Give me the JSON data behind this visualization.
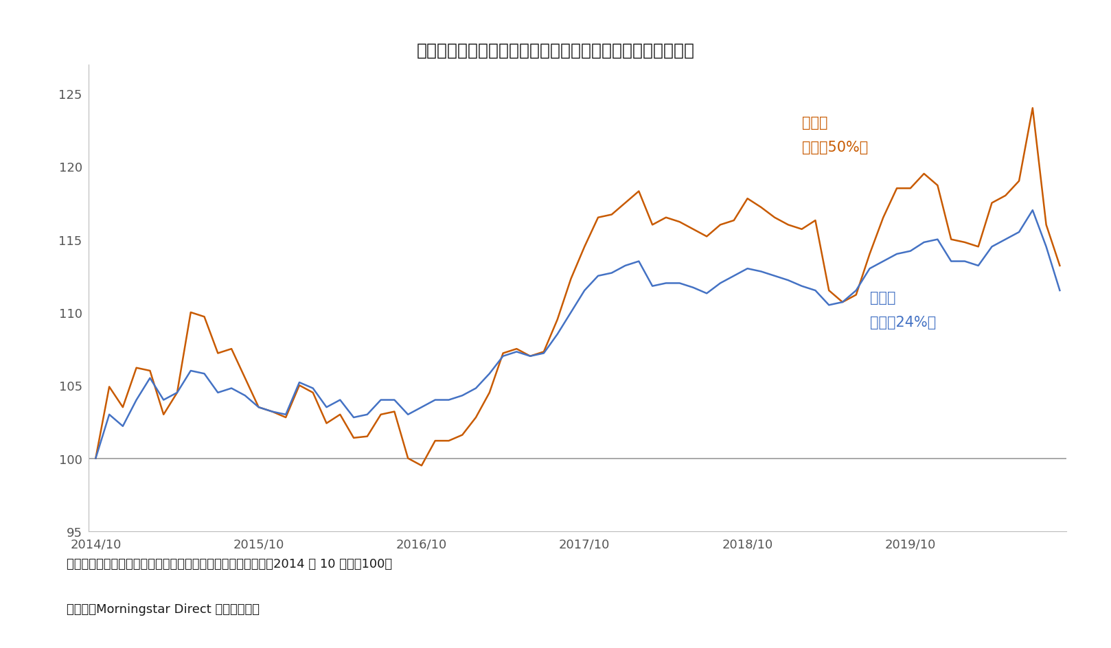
{
  "title": "図表２：株式の投資割合を増やした方が高収益だった可能性",
  "title_fontsize": 18,
  "xlabel": "",
  "ylabel": "",
  "ylim": [
    95,
    127
  ],
  "yticks": [
    95,
    100,
    105,
    110,
    115,
    120,
    125
  ],
  "bg_color": "#ffffff",
  "plot_bg_color": "#ffffff",
  "line_color_orange": "#C85A00",
  "line_color_blue": "#4472C4",
  "grid_color": "#AAAAAA",
  "annotation_orange_line1": "変更後",
  "annotation_orange_line2": "（株式50%）",
  "annotation_blue_line1": "変更前",
  "annotation_blue_line2": "（株式24%）",
  "annotation_orange_color": "#C85A00",
  "annotation_blue_color": "#4472C4",
  "annotation_fontsize": 15,
  "note1": "（注）各資産のベンチマーク指数の月次収益率を用いて計算（2014 年 10 月末＝100）",
  "note2": "（資料）Morningstar Direct より筆者作成",
  "note_fontsize": 13,
  "xtick_labels": [
    "2014/10",
    "2015/10",
    "2016/10",
    "2017/10",
    "2018/10",
    "2019/10"
  ],
  "orange_data": [
    100.0,
    104.9,
    103.5,
    106.2,
    106.0,
    103.0,
    104.5,
    110.0,
    109.7,
    107.2,
    107.5,
    105.5,
    103.5,
    103.2,
    102.8,
    105.0,
    104.5,
    102.4,
    103.0,
    101.4,
    101.5,
    103.0,
    103.2,
    100.0,
    99.5,
    101.2,
    101.2,
    101.6,
    102.8,
    104.5,
    107.2,
    107.5,
    107.0,
    107.3,
    109.5,
    112.3,
    114.5,
    116.5,
    116.7,
    117.5,
    118.3,
    116.0,
    116.5,
    116.2,
    115.7,
    115.2,
    116.0,
    116.3,
    117.8,
    117.2,
    116.5,
    116.0,
    115.7,
    116.3,
    111.5,
    110.7,
    111.2,
    114.0,
    116.5,
    118.5,
    118.5,
    119.5,
    118.7,
    115.0,
    114.8,
    114.5,
    117.5,
    118.0,
    119.0,
    124.0,
    116.0,
    113.2
  ],
  "blue_data": [
    100.0,
    103.0,
    102.2,
    104.0,
    105.5,
    104.0,
    104.5,
    106.0,
    105.8,
    104.5,
    104.8,
    104.3,
    103.5,
    103.2,
    103.0,
    105.2,
    104.8,
    103.5,
    104.0,
    102.8,
    103.0,
    104.0,
    104.0,
    103.0,
    103.5,
    104.0,
    104.0,
    104.3,
    104.8,
    105.8,
    107.0,
    107.3,
    107.0,
    107.2,
    108.5,
    110.0,
    111.5,
    112.5,
    112.7,
    113.2,
    113.5,
    111.8,
    112.0,
    112.0,
    111.7,
    111.3,
    112.0,
    112.5,
    113.0,
    112.8,
    112.5,
    112.2,
    111.8,
    111.5,
    110.5,
    110.7,
    111.5,
    113.0,
    113.5,
    114.0,
    114.2,
    114.8,
    115.0,
    113.5,
    113.5,
    113.2,
    114.5,
    115.0,
    115.5,
    117.0,
    114.5,
    111.5
  ]
}
